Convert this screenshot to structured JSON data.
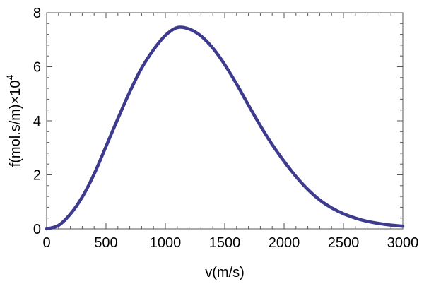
{
  "chart_data": {
    "type": "line",
    "title": "",
    "xlabel": "v(m/s)",
    "ylabel_base": "f(mol.s/m)×10",
    "ylabel_exp": "4",
    "xlim": [
      0,
      3000
    ],
    "ylim": [
      0,
      8
    ],
    "xticks": [
      0,
      500,
      1000,
      1500,
      2000,
      2500,
      3000
    ],
    "yticks": [
      0,
      2,
      4,
      6,
      8
    ],
    "xtick_labels": [
      "0",
      "500",
      "1000",
      "1500",
      "2000",
      "2500",
      "3000"
    ],
    "ytick_labels": [
      "0",
      "2",
      "4",
      "6",
      "8"
    ],
    "grid": false,
    "legend": "none",
    "line_color": "#3e3b8e",
    "series": [
      {
        "x": [
          0,
          100,
          200,
          300,
          400,
          500,
          600,
          700,
          800,
          900,
          1000,
          1100,
          1200,
          1300,
          1400,
          1500,
          1600,
          1700,
          1800,
          1900,
          2000,
          2100,
          2200,
          2300,
          2400,
          2500,
          2600,
          2700,
          2800,
          2900,
          3000
        ],
        "y": [
          0,
          0.13,
          0.55,
          1.18,
          2.03,
          3.05,
          4.08,
          5.07,
          5.95,
          6.63,
          7.16,
          7.45,
          7.4,
          7.14,
          6.69,
          6.08,
          5.36,
          4.58,
          3.82,
          3.12,
          2.5,
          1.94,
          1.46,
          1.07,
          0.78,
          0.56,
          0.4,
          0.28,
          0.2,
          0.14,
          0.1
        ]
      }
    ]
  }
}
